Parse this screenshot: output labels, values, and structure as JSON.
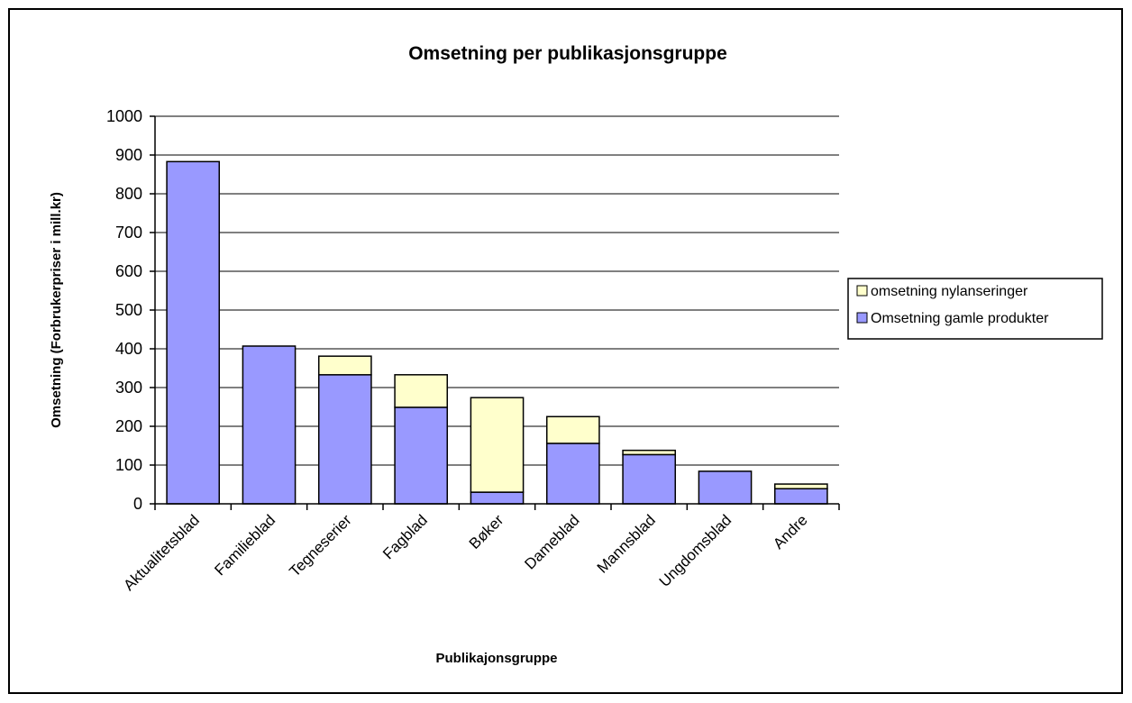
{
  "chart_data": {
    "type": "bar",
    "stacked": true,
    "title": "Omsetning per publikasjonsgruppe",
    "xlabel": "Publikajonsgruppe",
    "ylabel": "Omsetning (Forbrukerpriser i mill.kr)",
    "ylim": [
      0,
      1000
    ],
    "yticks": [
      0,
      100,
      200,
      300,
      400,
      500,
      600,
      700,
      800,
      900,
      1000
    ],
    "grid": true,
    "legend_position": "right",
    "categories": [
      "Aktualitetsblad",
      "Familieblad",
      "Tegneserier",
      "Fagblad",
      "Bøker",
      "Dameblad",
      "Mannsblad",
      "Ungdomsblad",
      "Andre"
    ],
    "series": [
      {
        "name": "Omsetning gamle produkter",
        "color": "#9999ff",
        "values": [
          883,
          407,
          333,
          249,
          30,
          156,
          127,
          84,
          39
        ]
      },
      {
        "name": "omsetning nylanseringer",
        "color": "#ffffcc",
        "values": [
          0,
          0,
          48,
          84,
          244,
          69,
          11,
          0,
          12
        ]
      }
    ],
    "legend_order": [
      1,
      0
    ]
  }
}
